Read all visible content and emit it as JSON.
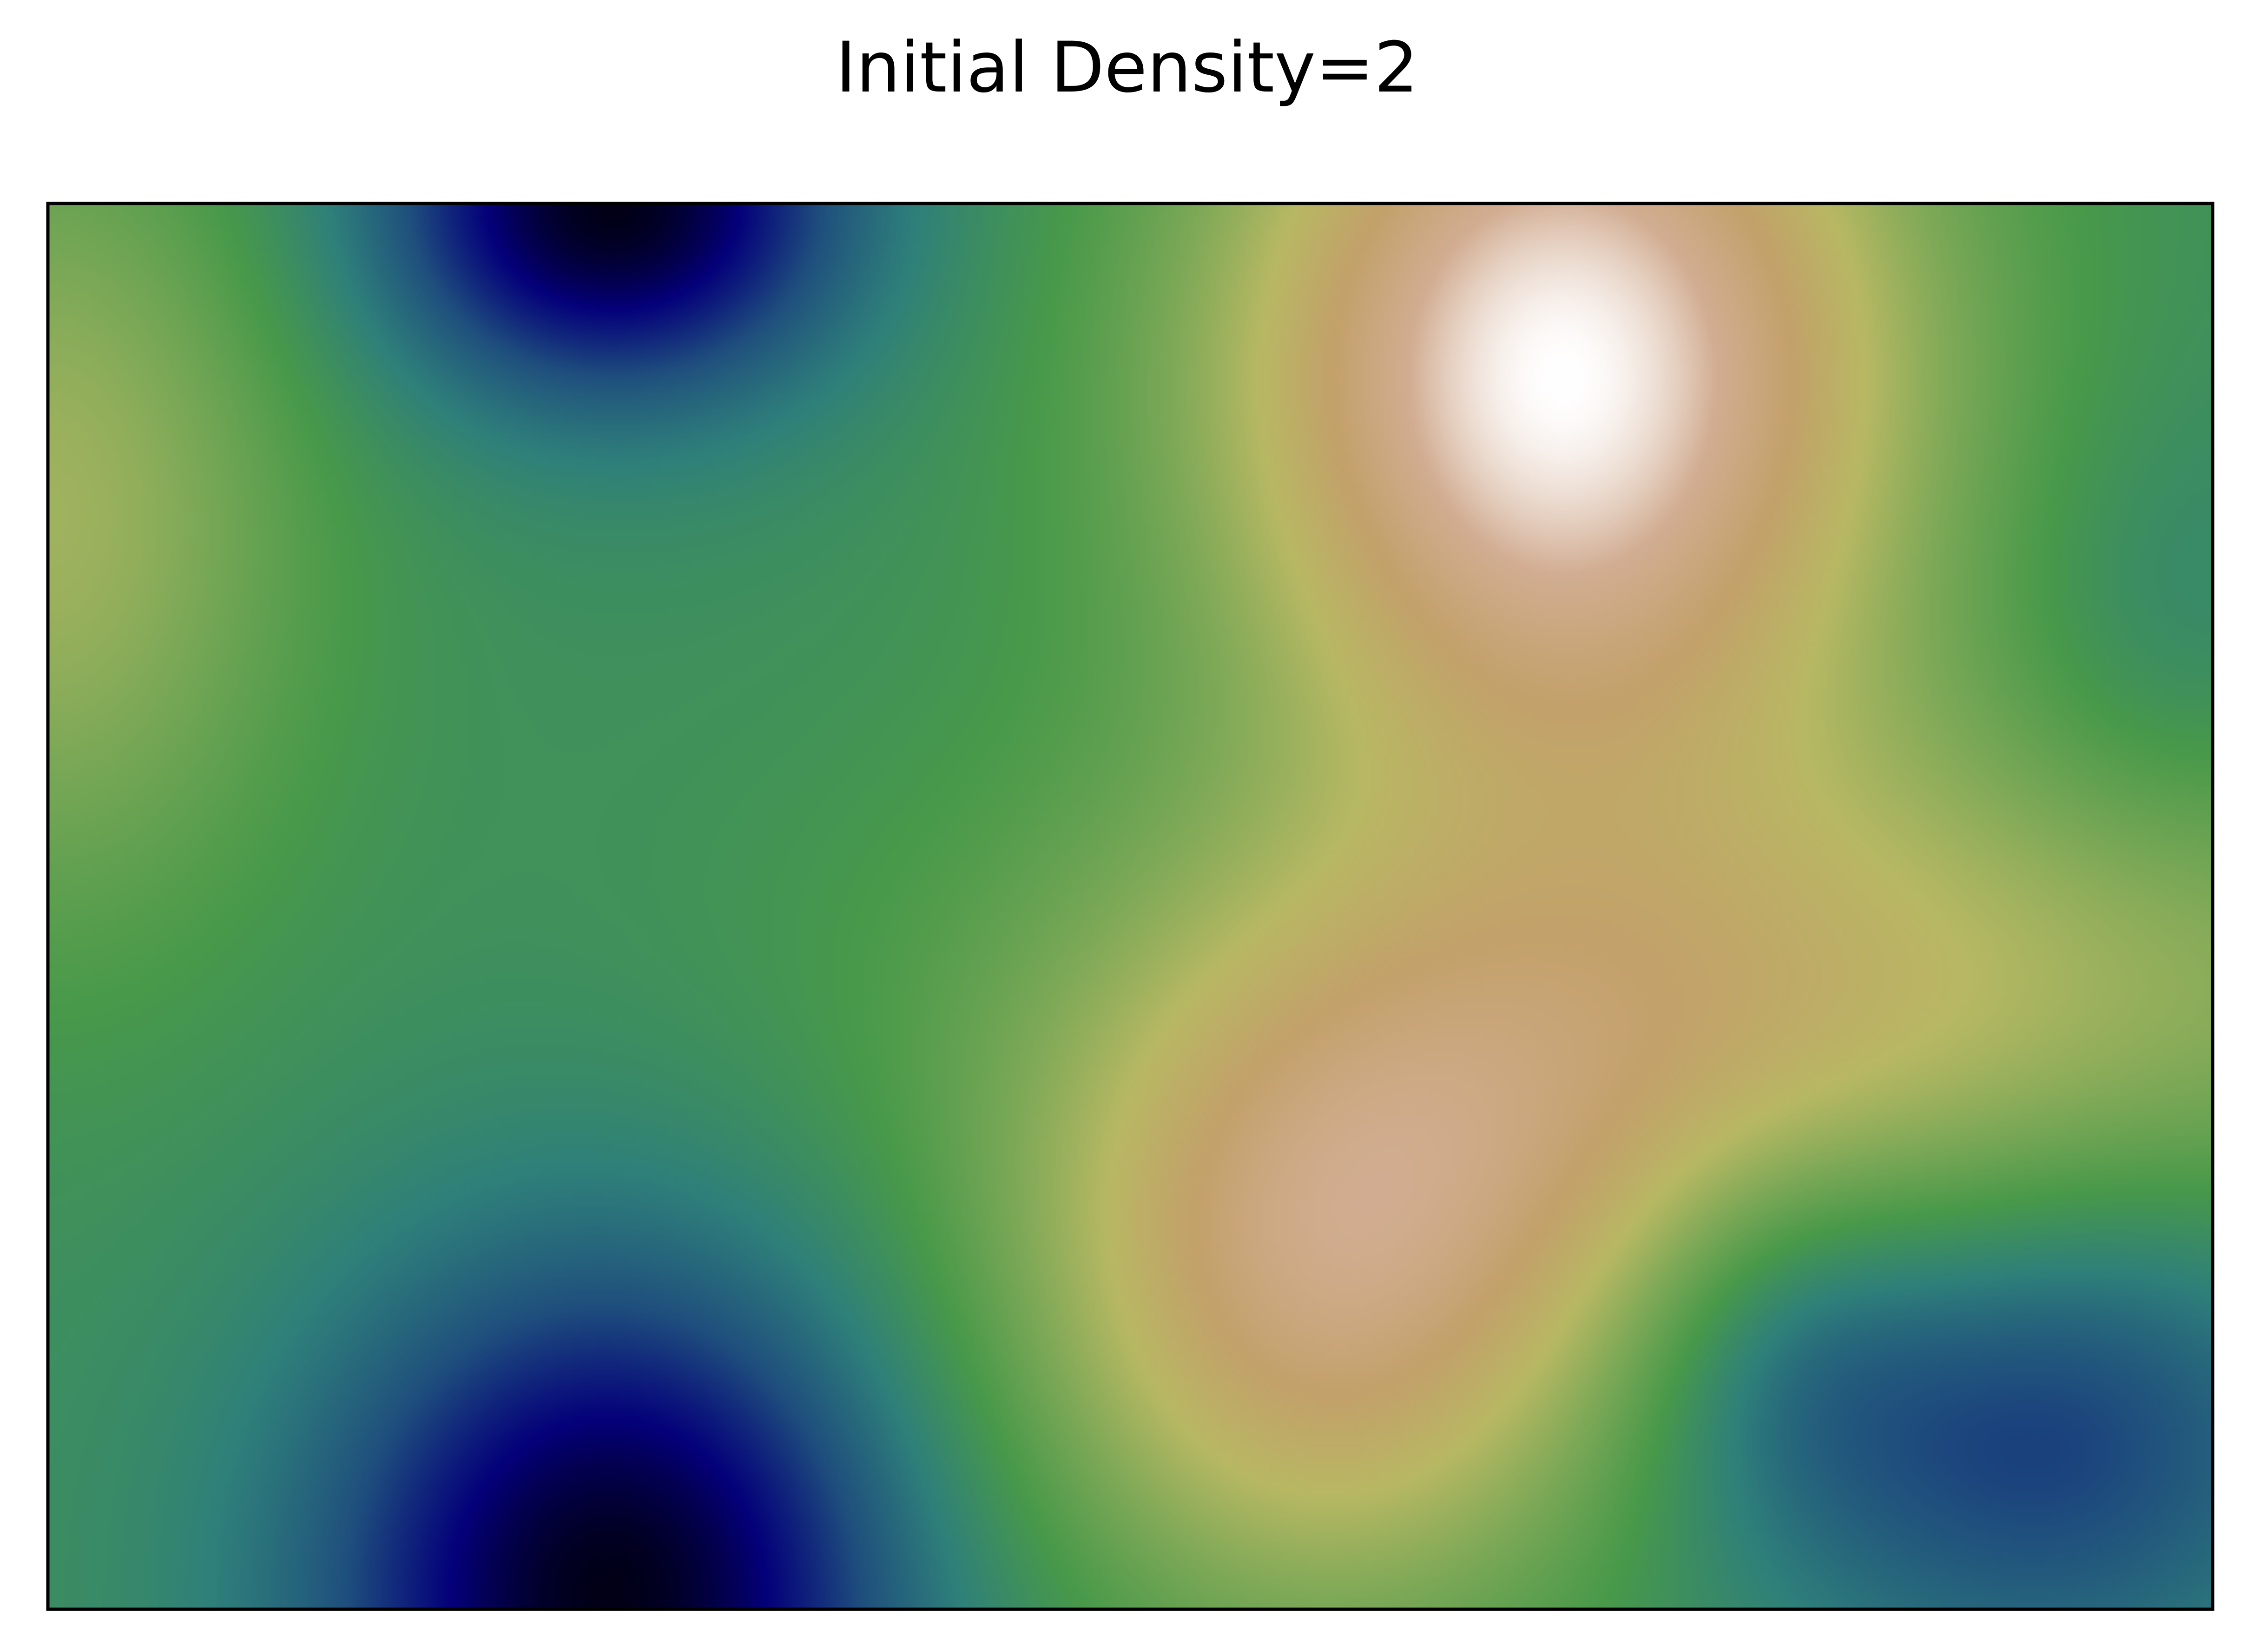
{
  "chart_data": {
    "type": "heatmap",
    "title": "Initial Density=2",
    "xlabel": "",
    "ylabel": "",
    "axes_ticks": "none",
    "grid": false,
    "colorbar": false,
    "colormap": {
      "name": "gist_earth",
      "stops": [
        "#000000",
        "#04007a",
        "#1f4f7d",
        "#2f807a",
        "#48994a",
        "#7ea957",
        "#b8b863",
        "#c3a16a",
        "#d2ad92",
        "#fffefe"
      ]
    },
    "field_features": [
      {
        "kind": "peak",
        "label": "upper-right maximum",
        "x": 0.7,
        "y": 0.12,
        "value": 1.0
      },
      {
        "kind": "peak",
        "label": "lower-centre maximum",
        "x": 0.59,
        "y": 0.78,
        "value": 0.78
      },
      {
        "kind": "trough",
        "label": "bottom-left minimum",
        "x": 0.26,
        "y": 0.99,
        "value": 0.02
      },
      {
        "kind": "trough",
        "label": "top-left minimum",
        "x": 0.26,
        "y": 0.0,
        "value": 0.02
      },
      {
        "kind": "trough",
        "label": "bottom-right minimum",
        "x": 0.92,
        "y": 0.86,
        "value": 0.18
      }
    ]
  }
}
